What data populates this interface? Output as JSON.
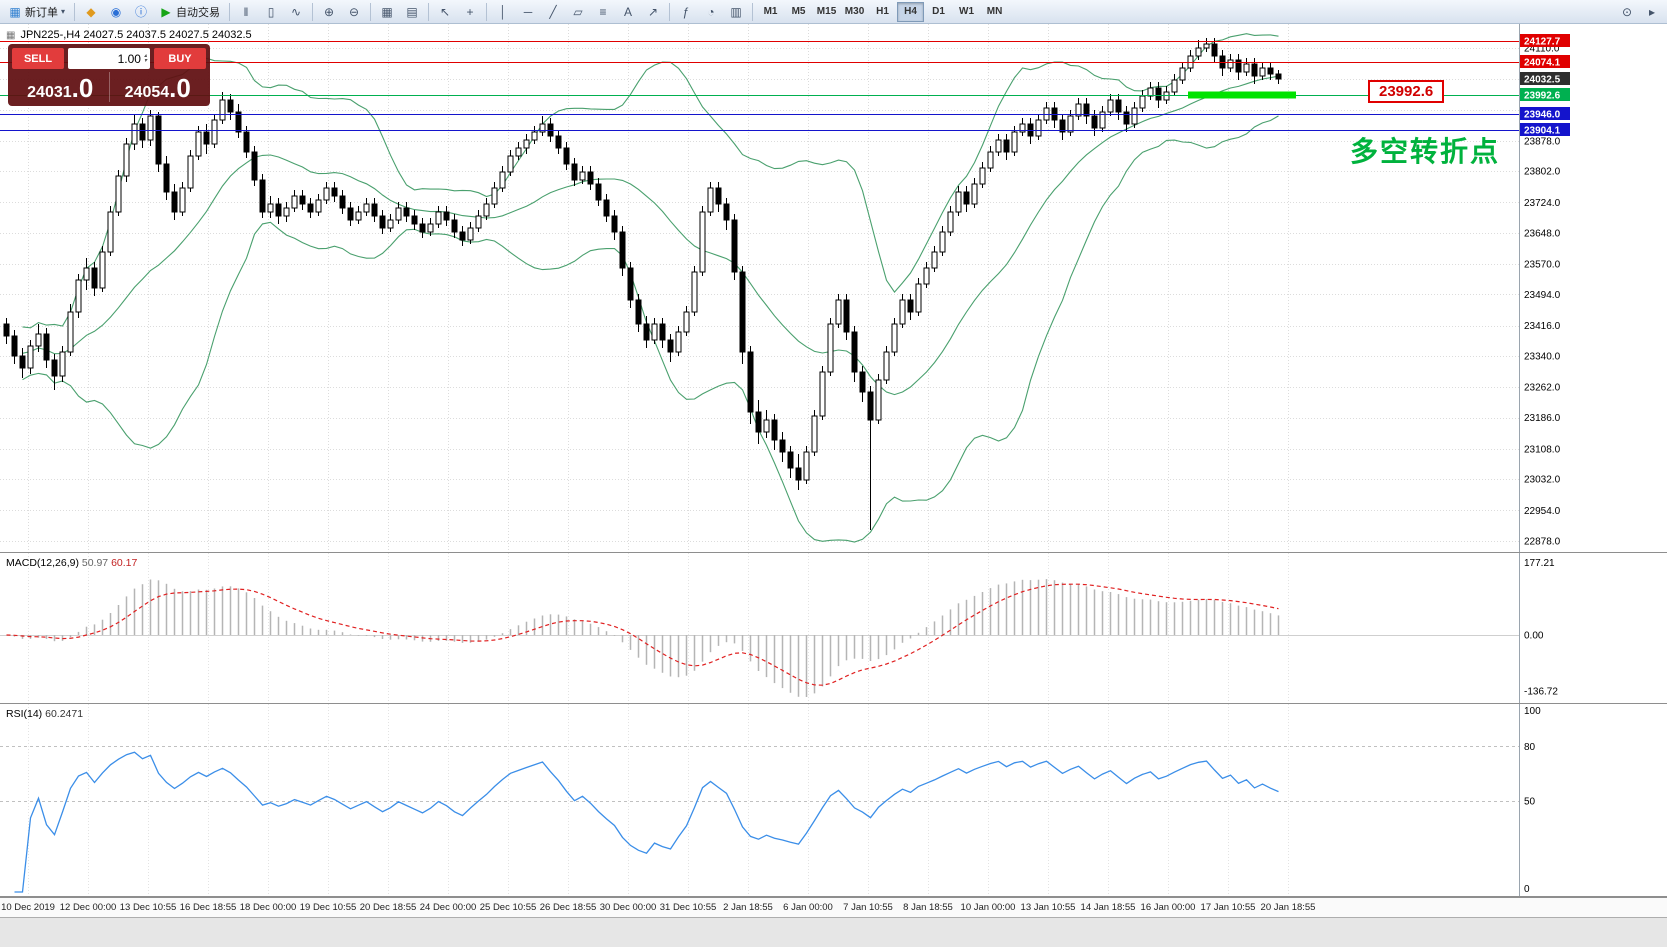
{
  "icons": {
    "chart_window": "▦"
  },
  "toolbar": {
    "items": [
      {
        "t": "btn",
        "name": "new-order",
        "icon": "▦",
        "icon_color": "#2f7fd0",
        "label": "新订单",
        "caret": true
      },
      {
        "t": "sep"
      },
      {
        "t": "ico",
        "name": "metaeditor",
        "icon": "◆",
        "icon_color": "#e09a1e"
      },
      {
        "t": "ico",
        "name": "community",
        "icon": "◉",
        "icon_color": "#2a6fd6"
      },
      {
        "t": "ico",
        "name": "info",
        "icon": "ⓘ",
        "icon_color": "#2a6fd6"
      },
      {
        "t": "btn",
        "name": "auto-trading",
        "icon": "▶",
        "icon_color": "#17a517",
        "label": "自动交易"
      },
      {
        "t": "sep"
      },
      {
        "t": "ico",
        "name": "chart-bars",
        "icon": "‖"
      },
      {
        "t": "ico",
        "name": "chart-candlesticks",
        "icon": "▯"
      },
      {
        "t": "ico",
        "name": "chart-line",
        "icon": "∿"
      },
      {
        "t": "sep"
      },
      {
        "t": "ico",
        "name": "zoom-in",
        "icon": "⊕"
      },
      {
        "t": "ico",
        "name": "zoom-out",
        "icon": "⊖"
      },
      {
        "t": "sep"
      },
      {
        "t": "ico",
        "name": "tile-windows",
        "icon": "▦"
      },
      {
        "t": "ico",
        "name": "chart-profiles",
        "icon": "▤"
      },
      {
        "t": "sep"
      },
      {
        "t": "ico",
        "name": "cursor",
        "icon": "↖"
      },
      {
        "t": "ico",
        "name": "crosshair",
        "icon": "+"
      },
      {
        "t": "sep"
      },
      {
        "t": "ico",
        "name": "vertical-line",
        "icon": "│"
      },
      {
        "t": "ico",
        "name": "horizontal-line",
        "icon": "─"
      },
      {
        "t": "ico",
        "name": "trendline",
        "icon": "╱"
      },
      {
        "t": "ico",
        "name": "channel",
        "icon": "▱"
      },
      {
        "t": "ico",
        "name": "fibonacci",
        "icon": "≡"
      },
      {
        "t": "ico",
        "name": "text-label",
        "icon": "A"
      },
      {
        "t": "ico",
        "name": "arrow-objects",
        "icon": "↗"
      },
      {
        "t": "sep"
      },
      {
        "t": "ico",
        "name": "indicators",
        "icon": "ƒ"
      },
      {
        "t": "ico",
        "name": "periods",
        "icon": "◔"
      },
      {
        "t": "ico",
        "name": "templates",
        "icon": "▥"
      },
      {
        "t": "sep"
      },
      {
        "t": "tf",
        "label": "M1"
      },
      {
        "t": "tf",
        "label": "M5"
      },
      {
        "t": "tf",
        "label": "M15"
      },
      {
        "t": "tf",
        "label": "M30"
      },
      {
        "t": "tf",
        "label": "H1"
      },
      {
        "t": "tf",
        "label": "H4",
        "active": true
      },
      {
        "t": "tf",
        "label": "D1"
      },
      {
        "t": "tf",
        "label": "W1"
      },
      {
        "t": "tf",
        "label": "MN"
      },
      {
        "t": "spacer"
      },
      {
        "t": "ico",
        "name": "search",
        "icon": "⊙"
      },
      {
        "t": "ico",
        "name": "quick-navigation",
        "icon": "▸"
      }
    ]
  },
  "symbol_header": "JPN225-,H4  24027.5 24037.5 24027.5 24032.5",
  "trade_panel": {
    "sell_label": "SELL",
    "buy_label": "BUY",
    "volume": "1.00",
    "spin_up": "▴",
    "spin_down": "▾",
    "sell_price_main": "24031",
    "sell_price_frac": ".0",
    "buy_price_main": "24054",
    "buy_price_frac": ".0"
  },
  "annotation_text": "多空转折点",
  "price_callout": "23992.6",
  "chart_data": {
    "type": "candlestick",
    "symbol": "JPN225-",
    "timeframe": "H4",
    "ohlc_current": {
      "open": 24027.5,
      "high": 24037.5,
      "low": 24027.5,
      "close": 24032.5
    },
    "y_grid_prices": [
      22878,
      22954,
      23032,
      23108,
      23186,
      23262,
      23340,
      23416,
      23494,
      23570,
      23648,
      23724,
      23802,
      23878,
      23956,
      24032,
      24110
    ],
    "y_axis_labels": [
      {
        "text": "24110.0",
        "price": 24110.0
      },
      {
        "text": "23878.0",
        "price": 23878.0
      },
      {
        "text": "23802.0",
        "price": 23802.0
      },
      {
        "text": "23724.0",
        "price": 23724.0
      },
      {
        "text": "23648.0",
        "price": 23648.0
      },
      {
        "text": "23570.0",
        "price": 23570.0
      },
      {
        "text": "23494.0",
        "price": 23494.0
      },
      {
        "text": "23416.0",
        "price": 23416.0
      },
      {
        "text": "23340.0",
        "price": 23340.0
      },
      {
        "text": "23262.0",
        "price": 23262.0
      },
      {
        "text": "23186.0",
        "price": 23186.0
      },
      {
        "text": "23108.0",
        "price": 23108.0
      },
      {
        "text": "23032.0",
        "price": 23032.0
      },
      {
        "text": "22954.0",
        "price": 22954.0
      },
      {
        "text": "22878.0",
        "price": 22878.0
      }
    ],
    "hlines": [
      {
        "price": 24127.7,
        "label": "24127.7",
        "color": "#e00000"
      },
      {
        "price": 24074.1,
        "label": "24074.1",
        "color": "#e00000"
      },
      {
        "price": 23992.6,
        "label": "23992.6",
        "color": "#00b050"
      },
      {
        "price": 23946.0,
        "label": "23946.0",
        "color": "#1414cc"
      },
      {
        "price": 23904.1,
        "label": "23904.1",
        "color": "#1414cc"
      }
    ],
    "current_price_tag": {
      "price": 24032.5,
      "label": "24032.5",
      "bg": "#2e2e2e"
    },
    "highlight_segment": {
      "price": 23992.6,
      "from_bar": 148,
      "to_bar": 161.5,
      "color": "#00e300",
      "thickness": 7
    },
    "bollinger": {
      "period": 20,
      "deviation": 2,
      "color": "#4aa06e"
    },
    "macd": {
      "name": "MACD(12,26,9)",
      "value_main": "50.97",
      "value_signal": "60.17",
      "fast": 12,
      "slow": 26,
      "signal": 9,
      "axis": [
        {
          "text": "177.21",
          "value": 177.21
        },
        {
          "text": "0.00",
          "value": 0
        },
        {
          "text": "-136.72",
          "value": -136.72
        }
      ],
      "histogram_color": "#b5b5b5",
      "signal_color": "#e02020"
    },
    "rsi": {
      "name": "RSI(14)",
      "value": "60.2471",
      "period": 14,
      "levels": [
        80,
        50
      ],
      "axis": [
        {
          "text": "100",
          "value": 100
        },
        {
          "text": "80",
          "value": 80
        },
        {
          "text": "50",
          "value": 50
        },
        {
          "text": "0",
          "value": 0
        }
      ],
      "color": "#3b8ee8"
    },
    "time_labels": [
      "10 Dec 2019",
      "12 Dec 00:00",
      "13 Dec 10:55",
      "16 Dec 18:55",
      "18 Dec 00:00",
      "19 Dec 10:55",
      "20 Dec 18:55",
      "24 Dec 00:00",
      "25 Dec 10:55",
      "26 Dec 18:55",
      "30 Dec 00:00",
      "31 Dec 10:55",
      "2 Jan 18:55",
      "6 Jan 00:00",
      "7 Jan 10:55",
      "8 Jan 18:55",
      "10 Jan 00:00",
      "13 Jan 10:55",
      "14 Jan 18:55",
      "16 Jan 00:00",
      "17 Jan 10:55",
      "20 Jan 18:55"
    ],
    "candles": [
      [
        23420,
        23435,
        23370,
        23390
      ],
      [
        23390,
        23405,
        23320,
        23340
      ],
      [
        23340,
        23360,
        23285,
        23310
      ],
      [
        23310,
        23380,
        23295,
        23365
      ],
      [
        23365,
        23420,
        23350,
        23395
      ],
      [
        23395,
        23410,
        23310,
        23330
      ],
      [
        23330,
        23345,
        23255,
        23290
      ],
      [
        23290,
        23365,
        23275,
        23350
      ],
      [
        23350,
        23470,
        23340,
        23450
      ],
      [
        23450,
        23545,
        23435,
        23530
      ],
      [
        23530,
        23585,
        23505,
        23560
      ],
      [
        23560,
        23575,
        23490,
        23510
      ],
      [
        23510,
        23615,
        23500,
        23600
      ],
      [
        23600,
        23715,
        23590,
        23700
      ],
      [
        23700,
        23805,
        23690,
        23790
      ],
      [
        23790,
        23885,
        23775,
        23870
      ],
      [
        23870,
        23945,
        23855,
        23920
      ],
      [
        23920,
        23935,
        23860,
        23880
      ],
      [
        23880,
        23955,
        23865,
        23940
      ],
      [
        23940,
        23950,
        23800,
        23820
      ],
      [
        23820,
        23840,
        23730,
        23750
      ],
      [
        23750,
        23770,
        23680,
        23700
      ],
      [
        23700,
        23775,
        23690,
        23760
      ],
      [
        23760,
        23855,
        23750,
        23840
      ],
      [
        23840,
        23915,
        23830,
        23900
      ],
      [
        23900,
        23920,
        23845,
        23870
      ],
      [
        23870,
        23945,
        23860,
        23930
      ],
      [
        23930,
        24000,
        23920,
        23980
      ],
      [
        23980,
        23995,
        23930,
        23950
      ],
      [
        23950,
        23970,
        23885,
        23900
      ],
      [
        23900,
        23915,
        23835,
        23850
      ],
      [
        23850,
        23865,
        23765,
        23780
      ],
      [
        23780,
        23795,
        23685,
        23700
      ],
      [
        23700,
        23740,
        23685,
        23720
      ],
      [
        23720,
        23735,
        23670,
        23690
      ],
      [
        23690,
        23725,
        23675,
        23710
      ],
      [
        23710,
        23755,
        23700,
        23740
      ],
      [
        23740,
        23755,
        23705,
        23720
      ],
      [
        23720,
        23735,
        23685,
        23700
      ],
      [
        23700,
        23745,
        23690,
        23730
      ],
      [
        23730,
        23775,
        23720,
        23760
      ],
      [
        23760,
        23775,
        23725,
        23740
      ],
      [
        23740,
        23755,
        23695,
        23710
      ],
      [
        23710,
        23725,
        23665,
        23680
      ],
      [
        23680,
        23715,
        23670,
        23700
      ],
      [
        23700,
        23735,
        23690,
        23720
      ],
      [
        23720,
        23735,
        23675,
        23690
      ],
      [
        23690,
        23705,
        23645,
        23660
      ],
      [
        23660,
        23695,
        23650,
        23680
      ],
      [
        23680,
        23725,
        23670,
        23710
      ],
      [
        23710,
        23725,
        23675,
        23690
      ],
      [
        23690,
        23705,
        23655,
        23670
      ],
      [
        23670,
        23685,
        23635,
        23650
      ],
      [
        23650,
        23685,
        23640,
        23670
      ],
      [
        23670,
        23715,
        23660,
        23700
      ],
      [
        23700,
        23715,
        23665,
        23680
      ],
      [
        23680,
        23695,
        23635,
        23650
      ],
      [
        23650,
        23665,
        23615,
        23630
      ],
      [
        23630,
        23675,
        23620,
        23660
      ],
      [
        23660,
        23705,
        23650,
        23690
      ],
      [
        23690,
        23735,
        23680,
        23720
      ],
      [
        23720,
        23775,
        23710,
        23760
      ],
      [
        23760,
        23815,
        23750,
        23800
      ],
      [
        23800,
        23855,
        23790,
        23840
      ],
      [
        23840,
        23875,
        23830,
        23860
      ],
      [
        23860,
        23895,
        23845,
        23880
      ],
      [
        23880,
        23915,
        23870,
        23900
      ],
      [
        23900,
        23940,
        23890,
        23920
      ],
      [
        23920,
        23935,
        23875,
        23890
      ],
      [
        23890,
        23905,
        23845,
        23860
      ],
      [
        23860,
        23875,
        23805,
        23820
      ],
      [
        23820,
        23835,
        23765,
        23780
      ],
      [
        23780,
        23815,
        23770,
        23800
      ],
      [
        23800,
        23815,
        23755,
        23770
      ],
      [
        23770,
        23785,
        23715,
        23730
      ],
      [
        23730,
        23745,
        23675,
        23690
      ],
      [
        23690,
        23705,
        23630,
        23650
      ],
      [
        23650,
        23665,
        23540,
        23560
      ],
      [
        23560,
        23575,
        23460,
        23480
      ],
      [
        23480,
        23495,
        23400,
        23420
      ],
      [
        23420,
        23440,
        23360,
        23380
      ],
      [
        23380,
        23435,
        23370,
        23420
      ],
      [
        23420,
        23435,
        23360,
        23380
      ],
      [
        23380,
        23395,
        23325,
        23350
      ],
      [
        23350,
        23415,
        23340,
        23400
      ],
      [
        23400,
        23465,
        23390,
        23450
      ],
      [
        23450,
        23565,
        23440,
        23550
      ],
      [
        23550,
        23715,
        23540,
        23700
      ],
      [
        23700,
        23775,
        23690,
        23760
      ],
      [
        23760,
        23775,
        23700,
        23720
      ],
      [
        23720,
        23735,
        23655,
        23680
      ],
      [
        23680,
        23695,
        23530,
        23550
      ],
      [
        23550,
        23565,
        23320,
        23350
      ],
      [
        23350,
        23365,
        23170,
        23200
      ],
      [
        23200,
        23230,
        23120,
        23150
      ],
      [
        23150,
        23205,
        23135,
        23180
      ],
      [
        23180,
        23195,
        23105,
        23130
      ],
      [
        23130,
        23150,
        23075,
        23100
      ],
      [
        23100,
        23115,
        23035,
        23060
      ],
      [
        23060,
        23095,
        23005,
        23030
      ],
      [
        23030,
        23115,
        23020,
        23100
      ],
      [
        23100,
        23205,
        23090,
        23190
      ],
      [
        23190,
        23315,
        23180,
        23300
      ],
      [
        23300,
        23435,
        23290,
        23420
      ],
      [
        23420,
        23495,
        23410,
        23480
      ],
      [
        23480,
        23495,
        23380,
        23400
      ],
      [
        23400,
        23415,
        23275,
        23300
      ],
      [
        23300,
        23315,
        23225,
        23250
      ],
      [
        23250,
        23265,
        22905,
        23180
      ],
      [
        23180,
        23295,
        23170,
        23280
      ],
      [
        23280,
        23365,
        23270,
        23350
      ],
      [
        23350,
        23435,
        23340,
        23420
      ],
      [
        23420,
        23495,
        23410,
        23480
      ],
      [
        23480,
        23495,
        23430,
        23450
      ],
      [
        23450,
        23535,
        23440,
        23520
      ],
      [
        23520,
        23575,
        23510,
        23560
      ],
      [
        23560,
        23615,
        23550,
        23600
      ],
      [
        23600,
        23665,
        23590,
        23650
      ],
      [
        23650,
        23715,
        23640,
        23700
      ],
      [
        23700,
        23765,
        23690,
        23750
      ],
      [
        23750,
        23765,
        23700,
        23720
      ],
      [
        23720,
        23785,
        23710,
        23770
      ],
      [
        23770,
        23825,
        23760,
        23810
      ],
      [
        23810,
        23865,
        23800,
        23850
      ],
      [
        23850,
        23895,
        23840,
        23880
      ],
      [
        23880,
        23895,
        23830,
        23850
      ],
      [
        23850,
        23915,
        23840,
        23900
      ],
      [
        23900,
        23935,
        23890,
        23920
      ],
      [
        23920,
        23935,
        23870,
        23890
      ],
      [
        23890,
        23945,
        23880,
        23930
      ],
      [
        23930,
        23975,
        23920,
        23960
      ],
      [
        23960,
        23975,
        23910,
        23930
      ],
      [
        23930,
        23945,
        23880,
        23900
      ],
      [
        23900,
        23955,
        23890,
        23940
      ],
      [
        23940,
        23985,
        23930,
        23970
      ],
      [
        23970,
        23985,
        23920,
        23940
      ],
      [
        23940,
        23955,
        23890,
        23910
      ],
      [
        23910,
        23965,
        23900,
        23950
      ],
      [
        23950,
        23995,
        23940,
        23980
      ],
      [
        23980,
        23995,
        23930,
        23950
      ],
      [
        23950,
        23965,
        23900,
        23920
      ],
      [
        23920,
        23975,
        23910,
        23960
      ],
      [
        23960,
        24005,
        23950,
        23990
      ],
      [
        23990,
        24025,
        23980,
        24010
      ],
      [
        24010,
        24025,
        23960,
        23980
      ],
      [
        23980,
        24015,
        23970,
        24000
      ],
      [
        24000,
        24045,
        23990,
        24030
      ],
      [
        24030,
        24075,
        24020,
        24060
      ],
      [
        24060,
        24105,
        24050,
        24090
      ],
      [
        24090,
        24130,
        24080,
        24110
      ],
      [
        24110,
        24135,
        24100,
        24120
      ],
      [
        24120,
        24135,
        24075,
        24090
      ],
      [
        24090,
        24105,
        24040,
        24060
      ],
      [
        24060,
        24095,
        24050,
        24080
      ],
      [
        24080,
        24095,
        24030,
        24050
      ],
      [
        24050,
        24085,
        24040,
        24070
      ],
      [
        24070,
        24085,
        24020,
        24040
      ],
      [
        24040,
        24075,
        24030,
        24060
      ],
      [
        24060,
        24075,
        24030,
        24045
      ],
      [
        24045,
        24055,
        24020,
        24032.5
      ]
    ]
  }
}
